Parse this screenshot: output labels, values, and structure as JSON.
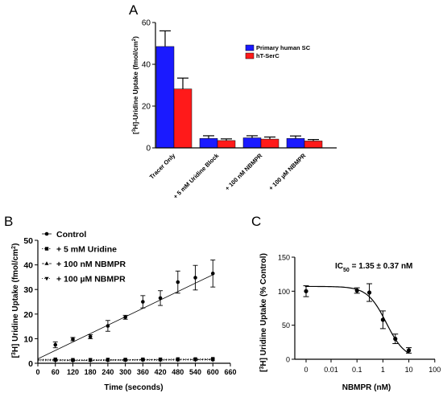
{
  "panels": {
    "a": "A",
    "b": "B",
    "c": "C"
  },
  "chart_data": [
    {
      "panel": "A",
      "type": "bar",
      "ylabel_parts": [
        "[",
        "3",
        "H]-Uridine Uptake (fmol/cm",
        "2",
        ")"
      ],
      "ylim": [
        0,
        60
      ],
      "yticks": [
        0,
        20,
        40,
        60
      ],
      "categories": [
        "Tracer Only",
        "+ 5 mM Uridine Block",
        "+ 100 nM NBMPR",
        "+ 100 µM NBMPR"
      ],
      "series": [
        {
          "name": "Primary human SC",
          "color": "#1a1aff",
          "values": [
            48.5,
            4.5,
            4.8,
            4.5
          ],
          "errors": [
            7.5,
            1.3,
            1.0,
            1.2
          ]
        },
        {
          "name": "hT-SerC",
          "color": "#ff1a1a",
          "values": [
            28.2,
            3.5,
            4.2,
            3.3
          ],
          "errors": [
            5.2,
            0.8,
            1.0,
            0.7
          ]
        }
      ],
      "legend": "top-right",
      "grid": false
    },
    {
      "panel": "B",
      "type": "scatter",
      "xlabel": "Time (seconds)",
      "ylabel_parts": [
        "[",
        "3",
        "H] Uridine Uptake (fmol/cm",
        "2",
        ")"
      ],
      "xlim": [
        0,
        660
      ],
      "ylim": [
        0,
        50
      ],
      "xticks": [
        0,
        60,
        120,
        180,
        240,
        300,
        360,
        420,
        480,
        540,
        600,
        660
      ],
      "yticks": [
        0,
        10,
        20,
        30,
        40,
        50
      ],
      "legend": "top-left",
      "series": [
        {
          "name": "Control",
          "x": [
            60,
            120,
            180,
            240,
            300,
            360,
            420,
            480,
            540,
            600
          ],
          "y": [
            7.5,
            9.8,
            10.8,
            15.2,
            18.7,
            25.0,
            26.5,
            33.0,
            34.8,
            36.5
          ],
          "errors": [
            1.2,
            0.7,
            0.8,
            2.2,
            0.8,
            2.5,
            3.0,
            4.5,
            5.0,
            5.5
          ],
          "fit": [
            [
              0,
              1.8
            ],
            [
              600,
              36.0
            ]
          ]
        },
        {
          "name": "+ 5 mM Uridine",
          "x": [
            60,
            120,
            180,
            240,
            300,
            360,
            420,
            480,
            540,
            600
          ],
          "y": [
            1.6,
            1.4,
            1.4,
            1.5,
            1.5,
            1.6,
            1.6,
            1.7,
            1.7,
            1.8
          ],
          "errors": [
            0.3,
            0.2,
            0.2,
            0.2,
            0.2,
            0.2,
            0.2,
            0.2,
            0.2,
            0.3
          ]
        },
        {
          "name": "+ 100 nM NBMPR",
          "x": [
            60,
            120,
            180,
            240,
            300,
            360,
            420,
            480,
            540,
            600
          ],
          "y": [
            1.3,
            1.2,
            1.2,
            1.3,
            1.3,
            1.4,
            1.4,
            1.4,
            1.5,
            1.5
          ],
          "errors": [
            0.2,
            0.2,
            0.2,
            0.2,
            0.2,
            0.2,
            0.2,
            0.2,
            0.2,
            0.2
          ]
        },
        {
          "name": "+ 100 µM NBMPR",
          "x": [
            60,
            120,
            180,
            240,
            300,
            360,
            420,
            480,
            540,
            600
          ],
          "y": [
            1.0,
            1.0,
            1.1,
            1.1,
            1.2,
            1.2,
            1.2,
            1.3,
            1.3,
            1.3
          ],
          "errors": [
            0.2,
            0.2,
            0.2,
            0.2,
            0.2,
            0.2,
            0.2,
            0.2,
            0.2,
            0.2
          ]
        }
      ]
    },
    {
      "panel": "C",
      "type": "scatter",
      "xlabel": "NBMPR (nM)",
      "ylabel": "[3H] Uridine Uptake (% Control)",
      "ylabel_parts": [
        "[",
        "3",
        "H] Uridine Uptake (% Control)"
      ],
      "xscale": "log",
      "xtick_labels": [
        "0",
        "0.01",
        "0.1",
        "1",
        "10",
        "100"
      ],
      "ylim": [
        0,
        150
      ],
      "yticks": [
        0,
        50,
        100,
        150
      ],
      "annotation_parts": [
        "IC",
        "50",
        " = 1.35 ± 0.37 nM"
      ],
      "series": [
        {
          "x": [
            0,
            0.1,
            0.3,
            1,
            3,
            10
          ],
          "y": [
            100,
            101,
            98,
            58,
            30,
            13
          ],
          "errors": [
            8,
            4,
            13,
            13,
            7,
            4
          ],
          "fit": {
            "top": 107,
            "bottom": 0,
            "ic50": 1.35,
            "hill": 1.2
          }
        }
      ]
    }
  ]
}
